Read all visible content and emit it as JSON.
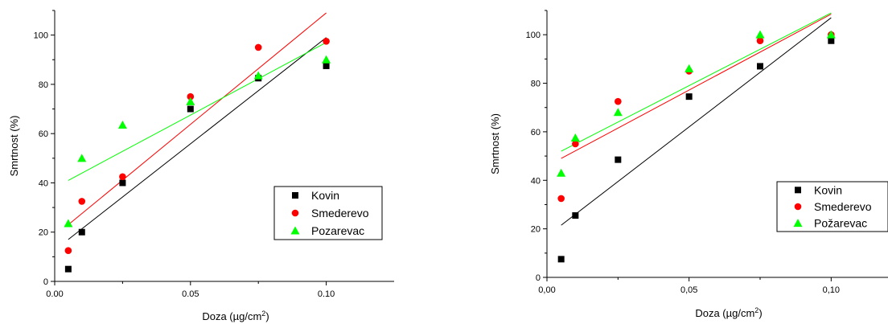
{
  "chart_data": [
    {
      "type": "scatter",
      "title": "",
      "xlabel": "Doza (µg/cm",
      "xlabel_sup": "2",
      "xlabel_end": ")",
      "ylabel": "Smrtnost (%)",
      "xlim": [
        0,
        0.125
      ],
      "ylim": [
        0,
        110
      ],
      "x_ticks": [
        0,
        0.05,
        0.1
      ],
      "x_tick_labels": [
        "0.00",
        "0.05",
        "0.10"
      ],
      "y_ticks": [
        0,
        20,
        40,
        60,
        80,
        100
      ],
      "y_tick_labels": [
        "0",
        "20",
        "40",
        "60",
        "80",
        "100"
      ],
      "legend_position": "lower-right",
      "series": [
        {
          "name": "Kovin",
          "marker": "square",
          "color": "#000000",
          "x": [
            0.005,
            0.01,
            0.025,
            0.05,
            0.075,
            0.1
          ],
          "y": [
            5,
            20,
            40,
            70,
            82.5,
            87.5
          ],
          "fit": {
            "x0": 0.005,
            "y0": 17,
            "x1": 0.1,
            "y1": 99
          }
        },
        {
          "name": "Smederevo",
          "marker": "circle",
          "color": "#ff0000",
          "x": [
            0.005,
            0.01,
            0.025,
            0.05,
            0.075,
            0.1
          ],
          "y": [
            12.5,
            32.5,
            42.5,
            75,
            95,
            97.5
          ],
          "fit": {
            "x0": 0.005,
            "y0": 23,
            "x1": 0.1,
            "y1": 109
          }
        },
        {
          "name": "Pozarevac",
          "marker": "triangle",
          "color": "#00ff00",
          "x": [
            0.005,
            0.01,
            0.025,
            0.05,
            0.075,
            0.1
          ],
          "y": [
            23.5,
            50,
            63.5,
            73,
            83.5,
            90
          ],
          "fit": {
            "x0": 0.005,
            "y0": 41,
            "x1": 0.1,
            "y1": 97
          }
        }
      ]
    },
    {
      "type": "scatter",
      "title": "",
      "xlabel": "Doza (µg/cm",
      "xlabel_sup": "2",
      "xlabel_end": ")",
      "ylabel": "Smrtnost (%)",
      "xlim": [
        0,
        0.12
      ],
      "ylim": [
        0,
        110
      ],
      "x_ticks": [
        0,
        0.05,
        0.1
      ],
      "x_tick_labels": [
        "0,00",
        "0,05",
        "0,10"
      ],
      "y_ticks": [
        0,
        20,
        40,
        60,
        80,
        100
      ],
      "y_tick_labels": [
        "0",
        "20",
        "40",
        "60",
        "80",
        "100"
      ],
      "legend_position": "lower-right",
      "series": [
        {
          "name": "Kovin",
          "marker": "square",
          "color": "#000000",
          "x": [
            0.005,
            0.01,
            0.025,
            0.05,
            0.075,
            0.1
          ],
          "y": [
            7.5,
            25.5,
            48.5,
            74.5,
            87,
            97.5
          ],
          "fit": {
            "x0": 0.005,
            "y0": 21.5,
            "x1": 0.1,
            "y1": 107
          }
        },
        {
          "name": "Smederevo",
          "marker": "circle",
          "color": "#ff0000",
          "x": [
            0.005,
            0.01,
            0.025,
            0.05,
            0.075,
            0.1
          ],
          "y": [
            32.5,
            55,
            72.5,
            85,
            97.5,
            100
          ],
          "fit": {
            "x0": 0.005,
            "y0": 49,
            "x1": 0.1,
            "y1": 108.5
          }
        },
        {
          "name": "Požarevac",
          "marker": "triangle",
          "color": "#00ff00",
          "x": [
            0.005,
            0.01,
            0.025,
            0.05,
            0.075,
            0.1
          ],
          "y": [
            43,
            57.5,
            68,
            86,
            100,
            100
          ],
          "fit": {
            "x0": 0.005,
            "y0": 52,
            "x1": 0.1,
            "y1": 109
          }
        }
      ]
    }
  ]
}
